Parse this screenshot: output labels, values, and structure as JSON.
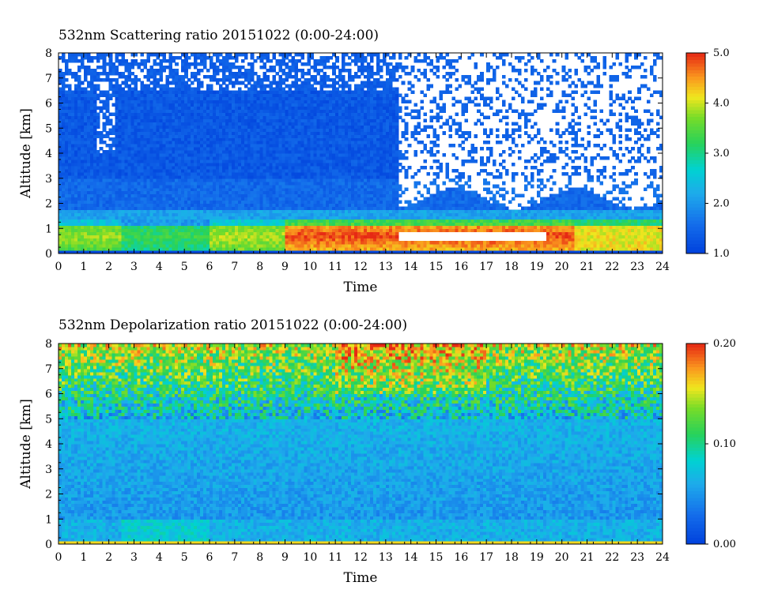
{
  "chart_data": [
    {
      "type": "heatmap",
      "title": "532nm Scattering ratio  20151022 (0:00-24:00)",
      "xlabel": "Time",
      "ylabel": "Altitude [km]",
      "xlim": [
        0,
        24
      ],
      "ylim": [
        0,
        8
      ],
      "x_ticks": [
        "0",
        "1",
        "2",
        "3",
        "4",
        "5",
        "6",
        "7",
        "8",
        "9",
        "10",
        "11",
        "12",
        "13",
        "14",
        "15",
        "16",
        "17",
        "18",
        "19",
        "20",
        "21",
        "22",
        "23",
        "24"
      ],
      "y_ticks": [
        "0",
        "1",
        "2",
        "3",
        "4",
        "5",
        "6",
        "7",
        "8"
      ],
      "colorbar": {
        "min": 1.0,
        "max": 5.0,
        "ticks": [
          "1.0",
          "2.0",
          "3.0",
          "4.0",
          "5.0"
        ],
        "colormap": "rainbow (blue-cyan-green-yellow-orange-red)"
      },
      "features": [
        {
          "name": "aerosol boundary layer",
          "time_range": [
            0,
            24
          ],
          "altitude_range_km": [
            0.2,
            1.4
          ],
          "scattering_ratio_range": [
            2.0,
            5.0
          ]
        },
        {
          "name": "missing data / low signal (white)",
          "time_range": [
            13.5,
            24
          ],
          "altitude_range_km": [
            2.2,
            8.0
          ]
        },
        {
          "name": "saturated cloud layer (white)",
          "time_range": [
            13.4,
            19.5
          ],
          "altitude_range_km": [
            0.4,
            1.0
          ]
        }
      ]
    },
    {
      "type": "heatmap",
      "title": "532nm Depolarization ratio  20151022 (0:00-24:00)",
      "xlabel": "Time",
      "ylabel": "Altitude [km]",
      "xlim": [
        0,
        24
      ],
      "ylim": [
        0,
        8
      ],
      "x_ticks": [
        "0",
        "1",
        "2",
        "3",
        "4",
        "5",
        "6",
        "7",
        "8",
        "9",
        "10",
        "11",
        "12",
        "13",
        "14",
        "15",
        "16",
        "17",
        "18",
        "19",
        "20",
        "21",
        "22",
        "23",
        "24"
      ],
      "y_ticks": [
        "0",
        "1",
        "2",
        "3",
        "4",
        "5",
        "6",
        "7",
        "8"
      ],
      "colorbar": {
        "min": 0.0,
        "max": 0.2,
        "ticks": [
          "0.00",
          "0.10",
          "0.20"
        ],
        "colormap": "rainbow (blue-cyan-green-yellow-orange-red)"
      },
      "features": [
        {
          "name": "high depolarization noise aloft",
          "time_range": [
            0,
            24
          ],
          "altitude_range_km": [
            5.5,
            8.0
          ],
          "depolarization_range": [
            0.08,
            0.2
          ]
        },
        {
          "name": "low depolarization mid levels",
          "time_range": [
            0,
            24
          ],
          "altitude_range_km": [
            1.0,
            5.0
          ],
          "depolarization_range": [
            0.02,
            0.06
          ]
        },
        {
          "name": "surface layer",
          "time_range": [
            0,
            24
          ],
          "altitude_range_km": [
            0.0,
            0.15
          ],
          "depolarization_range": [
            0.12,
            0.2
          ]
        }
      ]
    }
  ]
}
